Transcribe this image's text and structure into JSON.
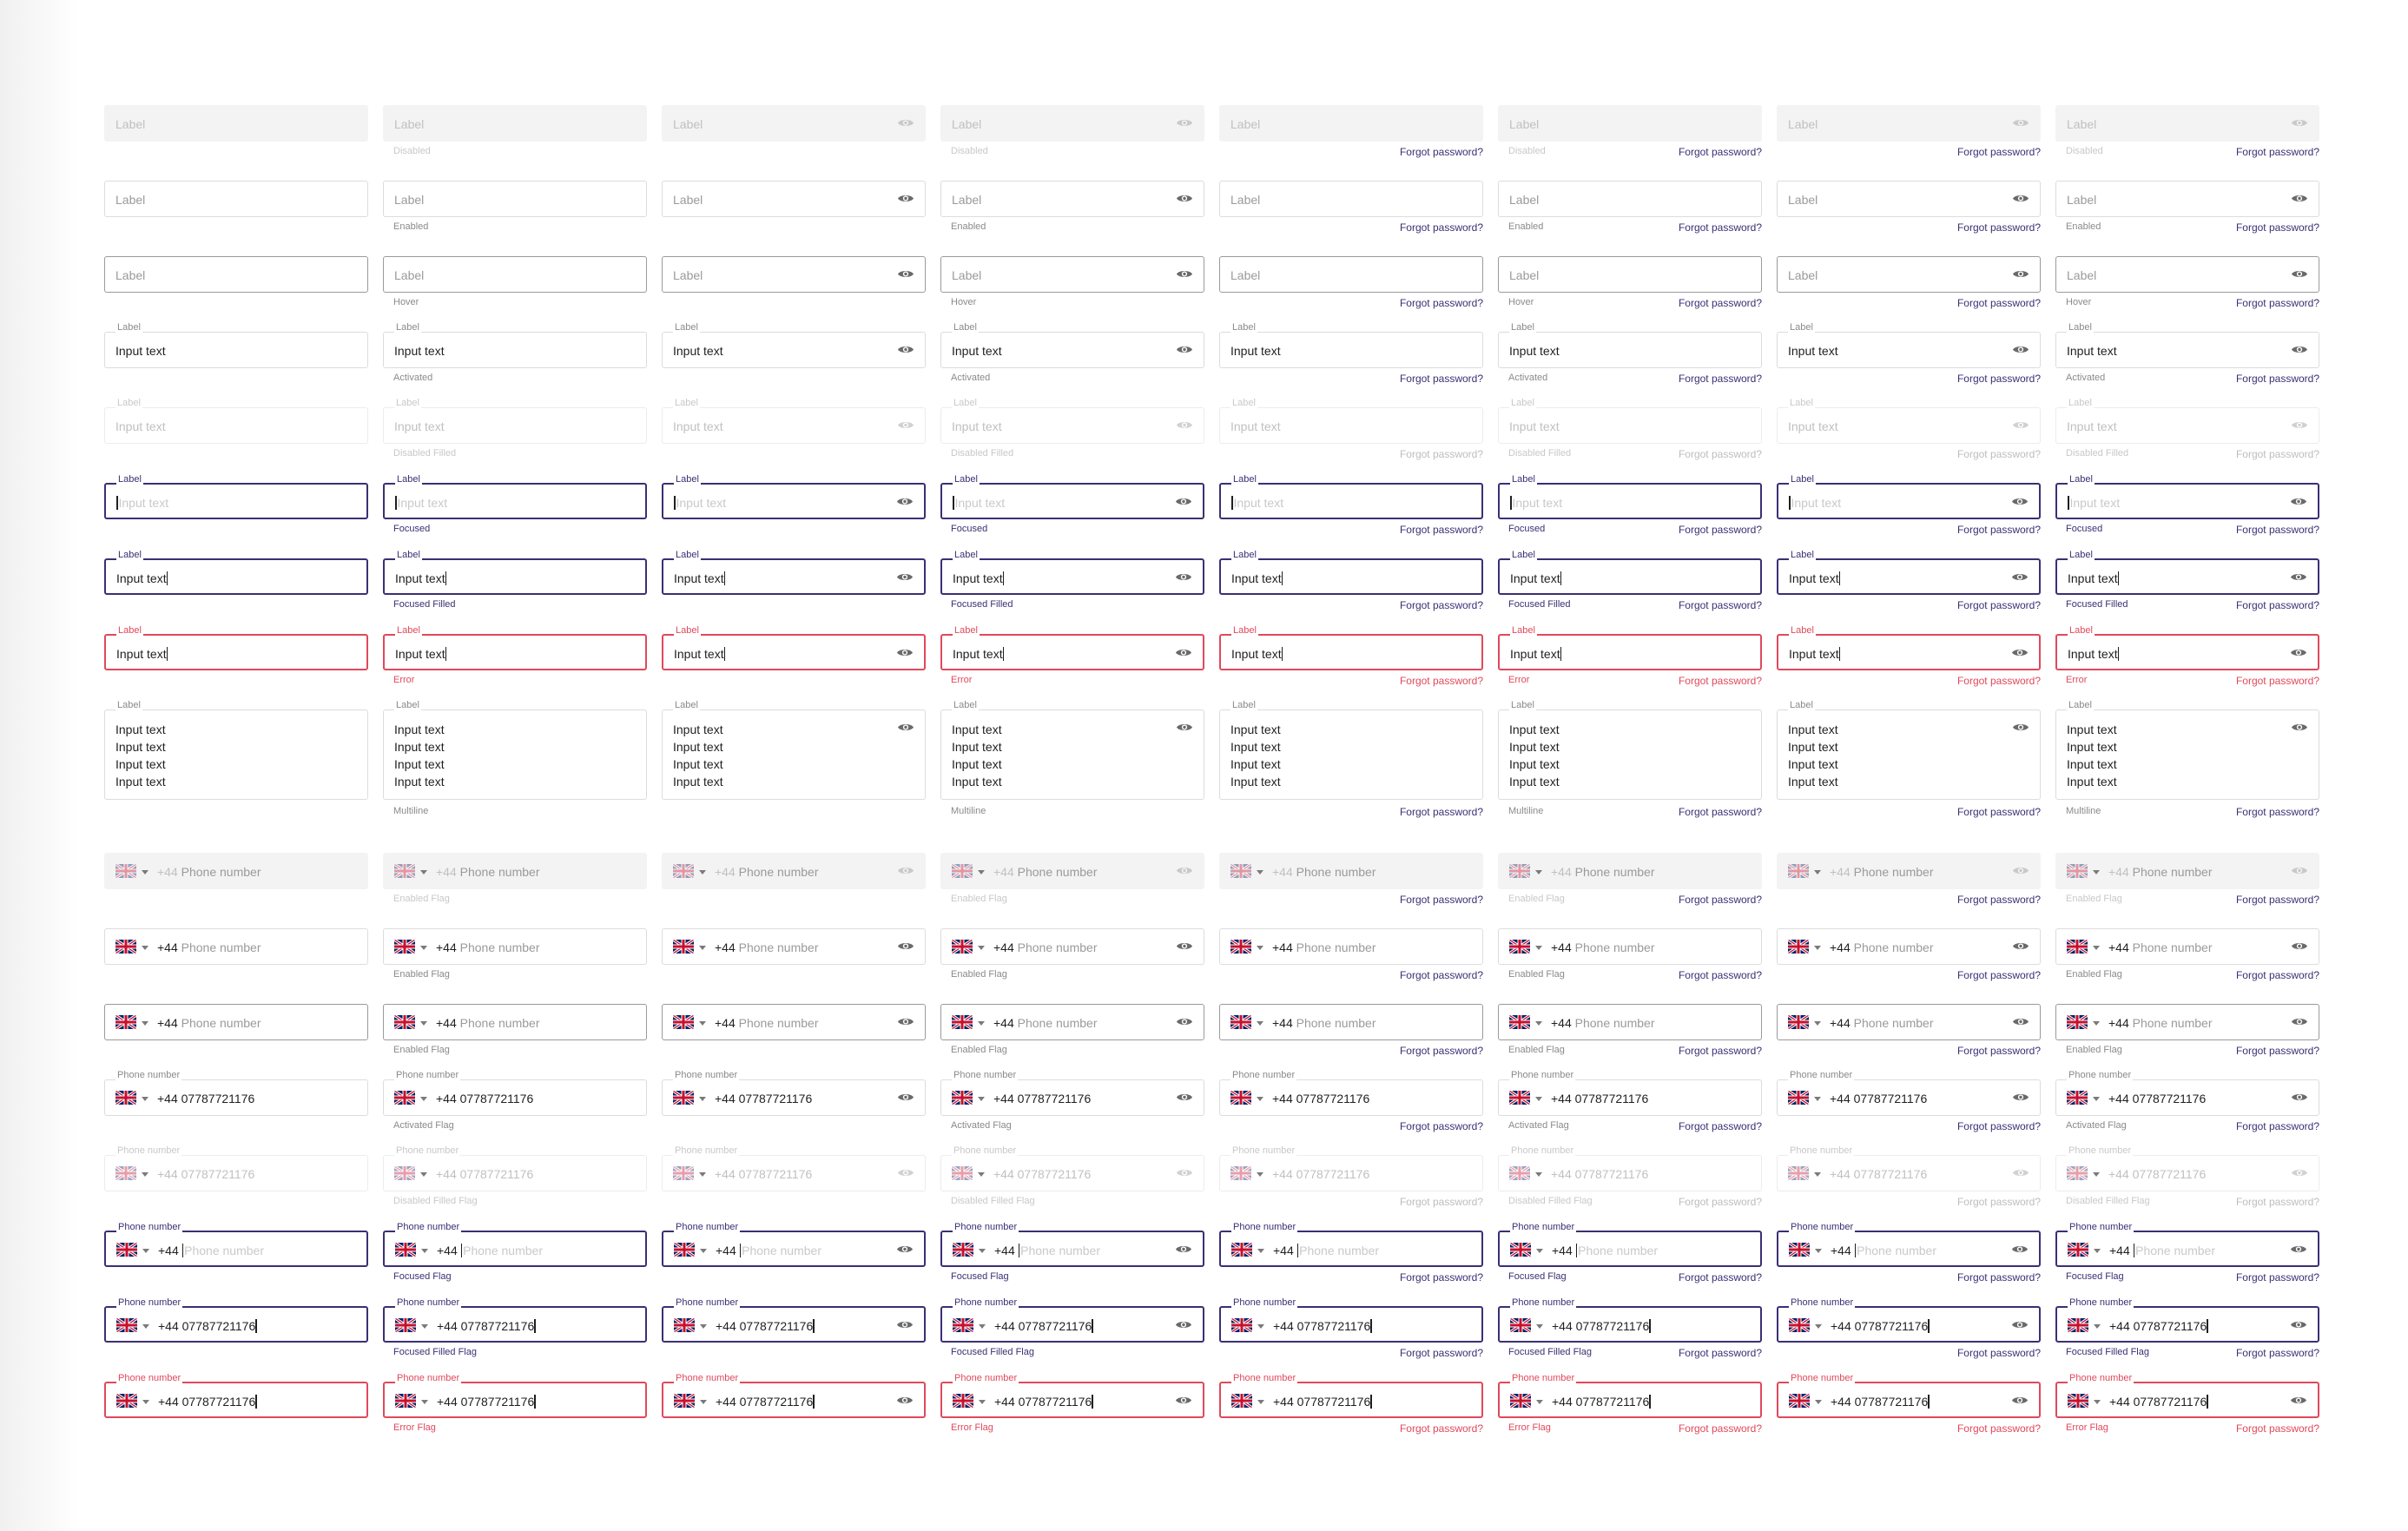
{
  "text": {
    "label": "Label",
    "input_text": "Input text",
    "phone_label": "Phone number",
    "phone_placeholder": "Phone number",
    "phone_prefix": "+44",
    "phone_value": "07787721176",
    "forgot": "Forgot password?"
  },
  "state_rows": [
    {
      "key": "disabled",
      "helper": "Disabled",
      "cls": "disabled",
      "float": false,
      "value": "label-ph",
      "caret": "none"
    },
    {
      "key": "enabled",
      "helper": "Enabled",
      "cls": "",
      "float": false,
      "value": "label-ph",
      "caret": "none"
    },
    {
      "key": "hover",
      "helper": "Hover",
      "cls": "hover",
      "float": false,
      "value": "label-ph",
      "caret": "none"
    },
    {
      "key": "activated",
      "helper": "Activated",
      "cls": "",
      "float": true,
      "value": "input",
      "caret": "none"
    },
    {
      "key": "disabled-filled",
      "helper": "Disabled Filled",
      "cls": "dfill",
      "float": true,
      "value": "input",
      "caret": "none"
    },
    {
      "key": "focused",
      "helper": "Focused",
      "cls": "focused",
      "float": true,
      "value": "input-ph",
      "caret": "pre"
    },
    {
      "key": "focused-filled",
      "helper": "Focused Filled",
      "cls": "focused",
      "float": true,
      "value": "input",
      "caret": "post"
    },
    {
      "key": "error",
      "helper": "Error",
      "cls": "error",
      "float": true,
      "value": "input",
      "caret": "post"
    },
    {
      "key": "multiline",
      "helper": "Multiline",
      "cls": "ml",
      "float": true,
      "value": "multiline",
      "caret": "none"
    }
  ],
  "multiline_lines": [
    "Input text",
    "Input text",
    "Input text",
    "Input text"
  ],
  "phone_rows": [
    {
      "key": "flag-disabled",
      "helper": "Enabled Flag",
      "cls": "disabled",
      "float": false,
      "value": "ph",
      "caret": "none"
    },
    {
      "key": "flag-enabled",
      "helper": "Enabled Flag",
      "cls": "",
      "float": false,
      "value": "ph",
      "caret": "none"
    },
    {
      "key": "flag-hover",
      "helper": "Enabled Flag",
      "cls": "hover",
      "float": false,
      "value": "ph",
      "caret": "none"
    },
    {
      "key": "flag-activated",
      "helper": "Activated Flag",
      "cls": "",
      "float": true,
      "value": "num",
      "caret": "none"
    },
    {
      "key": "flag-disabled-filled",
      "helper": "Disabled Filled Flag",
      "cls": "dfill",
      "float": true,
      "value": "num",
      "caret": "none"
    },
    {
      "key": "flag-focused",
      "helper": "Focused Flag",
      "cls": "focused",
      "float": true,
      "value": "ph",
      "caret": "pre"
    },
    {
      "key": "flag-focused-filled",
      "helper": "Focused Filled Flag",
      "cls": "focused",
      "float": true,
      "value": "num",
      "caret": "post"
    },
    {
      "key": "flag-error",
      "helper": "Error Flag",
      "cls": "error",
      "float": true,
      "value": "num",
      "caret": "post"
    }
  ],
  "columns": [
    {
      "eye": false,
      "helper": false,
      "forgot": false
    },
    {
      "eye": false,
      "helper": true,
      "forgot": false
    },
    {
      "eye": true,
      "helper": false,
      "forgot": false
    },
    {
      "eye": true,
      "helper": true,
      "forgot": false
    },
    {
      "eye": false,
      "helper": false,
      "forgot": true
    },
    {
      "eye": false,
      "helper": true,
      "forgot": true
    },
    {
      "eye": true,
      "helper": false,
      "forgot": true
    },
    {
      "eye": true,
      "helper": true,
      "forgot": true
    }
  ],
  "icons": {
    "eye": "eye-icon",
    "flag": "uk-flag-icon",
    "chevron": "chevron-down-icon"
  },
  "colors": {
    "focus": "#3b2f74",
    "error": "#e0495b",
    "disabled_bg": "#f3f3f3",
    "border": "#dcdcdc",
    "text": "#1f1f1f",
    "placeholder": "#9a9a9a"
  }
}
